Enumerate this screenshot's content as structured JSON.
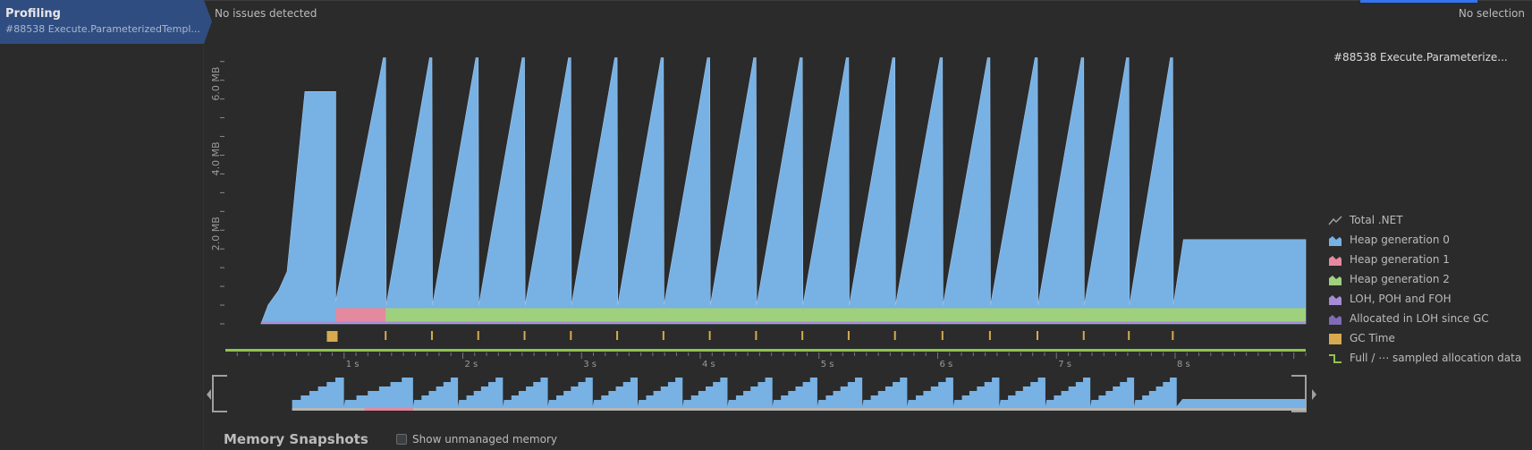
{
  "sidebar": {
    "item": {
      "title": "Profiling",
      "subtitle": "#88538 Execute.ParameterizedTempl..."
    }
  },
  "status": {
    "left": "No issues detected",
    "right": "No selection"
  },
  "detail": {
    "title": "#88538 Execute.Parameterize..."
  },
  "legend": [
    {
      "label": "Total .NET",
      "icon": "total-net-icon",
      "color": "#9da0a4"
    },
    {
      "label": "Heap generation 0",
      "icon": "heap-gen0-icon",
      "color": "#78b1e3"
    },
    {
      "label": "Heap generation 1",
      "icon": "heap-gen1-icon",
      "color": "#e5899f"
    },
    {
      "label": "Heap generation 2",
      "icon": "heap-gen2-icon",
      "color": "#9fd07d"
    },
    {
      "label": "LOH, POH and FOH",
      "icon": "loh-icon",
      "color": "#a78ad8"
    },
    {
      "label": "Allocated in LOH since GC",
      "icon": "allocated-loh-icon",
      "color": "#7f6bb6"
    },
    {
      "label": "GC Time",
      "icon": "gc-time-icon",
      "color": "#d8aa4f"
    },
    {
      "label": "Full / ⋯ sampled allocation data",
      "icon": "full-sampled-icon",
      "color": "#8ec34f"
    }
  ],
  "chart_data": {
    "type": "area",
    "y_axis": {
      "ticks": [
        "2.0 MB",
        "4.0 MB",
        "6.0 MB"
      ],
      "values_mb": [
        2,
        4,
        6
      ],
      "ylim": [
        0,
        7.4
      ]
    },
    "x_axis": {
      "ticks": [
        "1 s",
        "2 s",
        "3 s",
        "4 s",
        "5 s",
        "6 s",
        "7 s",
        "8 s"
      ],
      "values_s": [
        1,
        2,
        3,
        4,
        5,
        6,
        7,
        8
      ],
      "xlim": [
        0,
        9.1
      ]
    },
    "series": [
      {
        "name": "Heap generation 0",
        "peaks_s": [
          0.75,
          1.35,
          1.74,
          2.13,
          2.52,
          2.91,
          3.3,
          3.69,
          4.08,
          4.47,
          4.86,
          5.25,
          5.64,
          6.04,
          6.44,
          6.84,
          7.23,
          7.61,
          7.98
        ],
        "peaks_mb": [
          6.2,
          7.1,
          7.1,
          7.1,
          7.1,
          7.1,
          7.1,
          7.1,
          7.1,
          7.1,
          7.1,
          7.1,
          7.1,
          7.1,
          7.1,
          7.1,
          7.1,
          7.1,
          7.1
        ],
        "plateau_mb": 2.25
      },
      {
        "name": "Heap generation 1",
        "from_s": 0.93,
        "to_s": 1.35
      },
      {
        "name": "Heap generation 2",
        "from_s": 1.35,
        "to_s": 9.1
      }
    ],
    "gc_markers_s": [
      0.9,
      1.35,
      1.74,
      2.13,
      2.52,
      2.91,
      3.3,
      3.69,
      4.08,
      4.47,
      4.86,
      5.25,
      5.64,
      6.04,
      6.44,
      6.84,
      7.23,
      7.61,
      7.98
    ]
  },
  "footer": {
    "title": "Memory Snapshots",
    "checkbox_label": "Show unmanaged memory"
  }
}
